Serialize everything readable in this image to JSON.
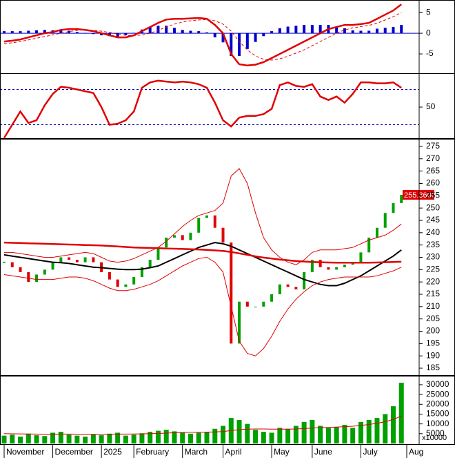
{
  "chart_data": [
    {
      "type": "macd",
      "ylim": [
        -9.5,
        7.7
      ],
      "yticks": [
        -5,
        0,
        5
      ],
      "series": [
        {
          "color": "#e00000",
          "style": "solid",
          "values": [
            -2,
            -1.8,
            -1.5,
            -1,
            -0.5,
            0,
            0.3,
            0.8,
            1,
            1,
            0.8,
            0.5,
            0,
            -0.5,
            -1,
            -1,
            -0.5,
            0.5,
            1.5,
            2.5,
            3.3,
            3.5,
            3.5,
            3.6,
            3.7,
            3.5,
            2,
            0,
            -5,
            -7.5,
            -7.8,
            -7.6,
            -7,
            -6,
            -5,
            -4,
            -3,
            -2,
            -1,
            0,
            1,
            1.5,
            2,
            2,
            2.2,
            2.5,
            3.5,
            4.5,
            5.5,
            7
          ]
        },
        {
          "color": "#e00000",
          "style": "dashed",
          "values": [
            -2.5,
            -2.3,
            -2,
            -1.6,
            -1.2,
            -0.8,
            -0.4,
            0,
            0.4,
            0.7,
            0.8,
            0.7,
            0.5,
            0.2,
            -0.2,
            -0.5,
            -0.6,
            -0.4,
            0,
            0.7,
            1.5,
            2.2,
            2.7,
            3,
            3.2,
            3.3,
            3,
            2.2,
            0.5,
            -2,
            -4,
            -5.5,
            -6.3,
            -6.5,
            -6.2,
            -5.6,
            -4.8,
            -4,
            -3,
            -2,
            -1,
            0,
            0.8,
            1.3,
            1.6,
            1.9,
            2.4,
            3.2,
            4,
            5
          ]
        }
      ],
      "histogram": {
        "color": "#0000cc",
        "values": [
          0.5,
          0.5,
          0.5,
          0.6,
          0.7,
          0.8,
          0.7,
          0.8,
          0.6,
          0.3,
          0,
          -0.2,
          -0.5,
          -0.7,
          -0.8,
          -0.5,
          0.1,
          0.9,
          1.5,
          1.8,
          1.8,
          1.3,
          0.8,
          0.6,
          0.5,
          0.2,
          -1,
          -2.2,
          -5.5,
          -5.5,
          -3.8,
          -2.1,
          -0.7,
          0.5,
          1.2,
          1.6,
          1.8,
          2,
          2,
          2,
          2,
          1.5,
          1.2,
          0.7,
          0.6,
          0.6,
          1.1,
          1.3,
          1.5,
          2
        ]
      }
    },
    {
      "type": "line",
      "ylim": [
        14.7,
        86.9
      ],
      "yticks": [
        50
      ],
      "reference_lines": [
        30,
        70
      ],
      "reference_color": "#0000aa",
      "series": [
        {
          "color": "#e00000",
          "style": "solid",
          "values": [
            15,
            30,
            45,
            32,
            35,
            52,
            65,
            73,
            72,
            70,
            68,
            66,
            50,
            30,
            31,
            35,
            45,
            72,
            78,
            80,
            79,
            78,
            79,
            78,
            76,
            72,
            55,
            35,
            28,
            38,
            40,
            40,
            42,
            48,
            75,
            78,
            74,
            73,
            76,
            62,
            58,
            62,
            55,
            65,
            78,
            78,
            77,
            77,
            78,
            72
          ]
        }
      ]
    },
    {
      "type": "candlestick",
      "ylim": [
        182.2,
        277.8
      ],
      "yticks": [
        185,
        190,
        195,
        200,
        205,
        210,
        215,
        220,
        225,
        230,
        235,
        240,
        245,
        250,
        255,
        260,
        265,
        270,
        275
      ],
      "up_color": "#00a000",
      "down_color": "#e00000",
      "close": [
        228,
        226,
        224,
        220,
        223,
        225,
        228,
        230,
        229,
        228,
        230,
        228,
        224,
        221,
        218,
        219,
        222,
        226,
        229,
        234,
        238,
        239,
        237,
        240,
        246,
        247,
        242,
        236,
        195,
        212,
        210,
        210,
        212,
        215,
        219,
        218,
        217,
        224,
        229,
        226,
        225,
        226,
        227,
        228,
        232,
        238,
        242,
        248,
        252,
        255.36
      ],
      "last_price": {
        "value": 255.36,
        "label": "255.3600"
      },
      "series": [
        {
          "color": "#000000",
          "width": 2,
          "values": [
            231,
            230.5,
            230,
            229.5,
            229,
            228.5,
            228,
            227.8,
            227.5,
            227,
            226.5,
            226,
            225.8,
            225.5,
            225.2,
            225,
            225,
            225.2,
            225.8,
            226.5,
            228,
            229.5,
            231,
            232.5,
            234,
            235,
            236,
            235.5,
            234.5,
            233,
            231.5,
            230,
            228.5,
            227,
            225.5,
            224,
            222.5,
            221,
            220,
            219,
            218.5,
            218.5,
            219.5,
            221,
            222.5,
            224.5,
            226.5,
            228.5,
            230.5,
            233
          ]
        },
        {
          "color": "#e00000",
          "width": 2.5,
          "values": [
            236,
            235.9,
            235.8,
            235.7,
            235.6,
            235.5,
            235.4,
            235.3,
            235.2,
            235.1,
            235,
            234.9,
            234.8,
            234.6,
            234.4,
            234.2,
            234,
            233.9,
            233.8,
            233.7,
            233.6,
            233.5,
            233.4,
            233.3,
            233.2,
            233,
            232.8,
            232.6,
            232.2,
            231.6,
            231,
            230.4,
            229.9,
            229.5,
            229.1,
            228.8,
            228.5,
            228.3,
            228.1,
            228,
            227.9,
            227.8,
            227.8,
            227.8,
            227.8,
            227.8,
            227.9,
            228,
            228.1,
            228.2
          ]
        },
        {
          "color": "#e00000",
          "width": 1,
          "values": [
            232,
            232,
            231.5,
            231,
            230.5,
            230,
            230,
            230.5,
            231,
            231.5,
            232,
            231.5,
            230,
            228.5,
            228,
            228.5,
            229.5,
            231,
            232.5,
            234,
            236.5,
            239.5,
            242.5,
            245,
            247,
            248,
            249,
            252,
            263,
            266,
            260,
            248,
            238,
            233,
            230,
            228,
            227,
            229,
            232,
            233,
            233,
            233,
            233.5,
            234,
            235.5,
            237,
            238,
            239,
            241,
            243.5
          ]
        },
        {
          "color": "#e00000",
          "width": 1,
          "values": [
            223,
            222.5,
            222,
            221.5,
            221,
            221,
            221,
            221.5,
            222,
            222,
            221.5,
            220.5,
            219,
            217.5,
            216.5,
            216.5,
            217,
            218,
            219,
            220.5,
            222.5,
            224.5,
            226.5,
            228,
            229.5,
            230,
            228,
            224,
            210,
            196,
            191,
            190,
            193,
            198,
            204,
            209,
            213,
            216,
            218.5,
            220,
            221,
            221.5,
            222,
            222,
            222,
            222,
            222.5,
            223.5,
            224.5,
            226
          ]
        }
      ]
    },
    {
      "type": "bar",
      "ylim": [
        0,
        34200
      ],
      "yticks": [
        5000,
        10000,
        15000,
        20000,
        25000,
        30000
      ],
      "unit_label": "x10000",
      "color": "#00a000",
      "values": [
        4000,
        4500,
        3500,
        5000,
        4200,
        3800,
        5500,
        6000,
        4500,
        4000,
        3500,
        4800,
        4200,
        5000,
        5500,
        4000,
        4500,
        5200,
        6000,
        6500,
        7000,
        6200,
        5800,
        5000,
        5500,
        6000,
        7500,
        9000,
        13000,
        12000,
        10000,
        7000,
        6000,
        5500,
        8000,
        7500,
        9000,
        11000,
        12000,
        9000,
        8000,
        8500,
        9500,
        8000,
        11000,
        12000,
        13000,
        15000,
        19000,
        31000
      ],
      "series": [
        {
          "color": "#e00000",
          "width": 1,
          "values": [
            5000,
            4950,
            4900,
            4850,
            4800,
            4750,
            4750,
            4800,
            4800,
            4750,
            4700,
            4700,
            4700,
            4750,
            4800,
            4800,
            4850,
            4900,
            5000,
            5100,
            5300,
            5500,
            5600,
            5700,
            5750,
            5800,
            5900,
            6100,
            6600,
            7000,
            7300,
            7400,
            7400,
            7300,
            7300,
            7300,
            7400,
            7600,
            7900,
            8100,
            8200,
            8400,
            8600,
            8800,
            9200,
            9700,
            10300,
            11100,
            12300,
            14000
          ]
        }
      ],
      "categories": [
        "November",
        null,
        null,
        null,
        null,
        null,
        "December",
        null,
        null,
        null,
        null,
        null,
        "2025",
        null,
        null,
        null,
        "February",
        null,
        null,
        null,
        null,
        null,
        "March",
        null,
        null,
        null,
        null,
        "April",
        null,
        null,
        null,
        null,
        null,
        "May",
        null,
        null,
        null,
        null,
        "June",
        null,
        null,
        null,
        null,
        null,
        "July",
        null,
        null,
        null,
        null,
        null
      ],
      "next_month_label": "Aug"
    }
  ]
}
